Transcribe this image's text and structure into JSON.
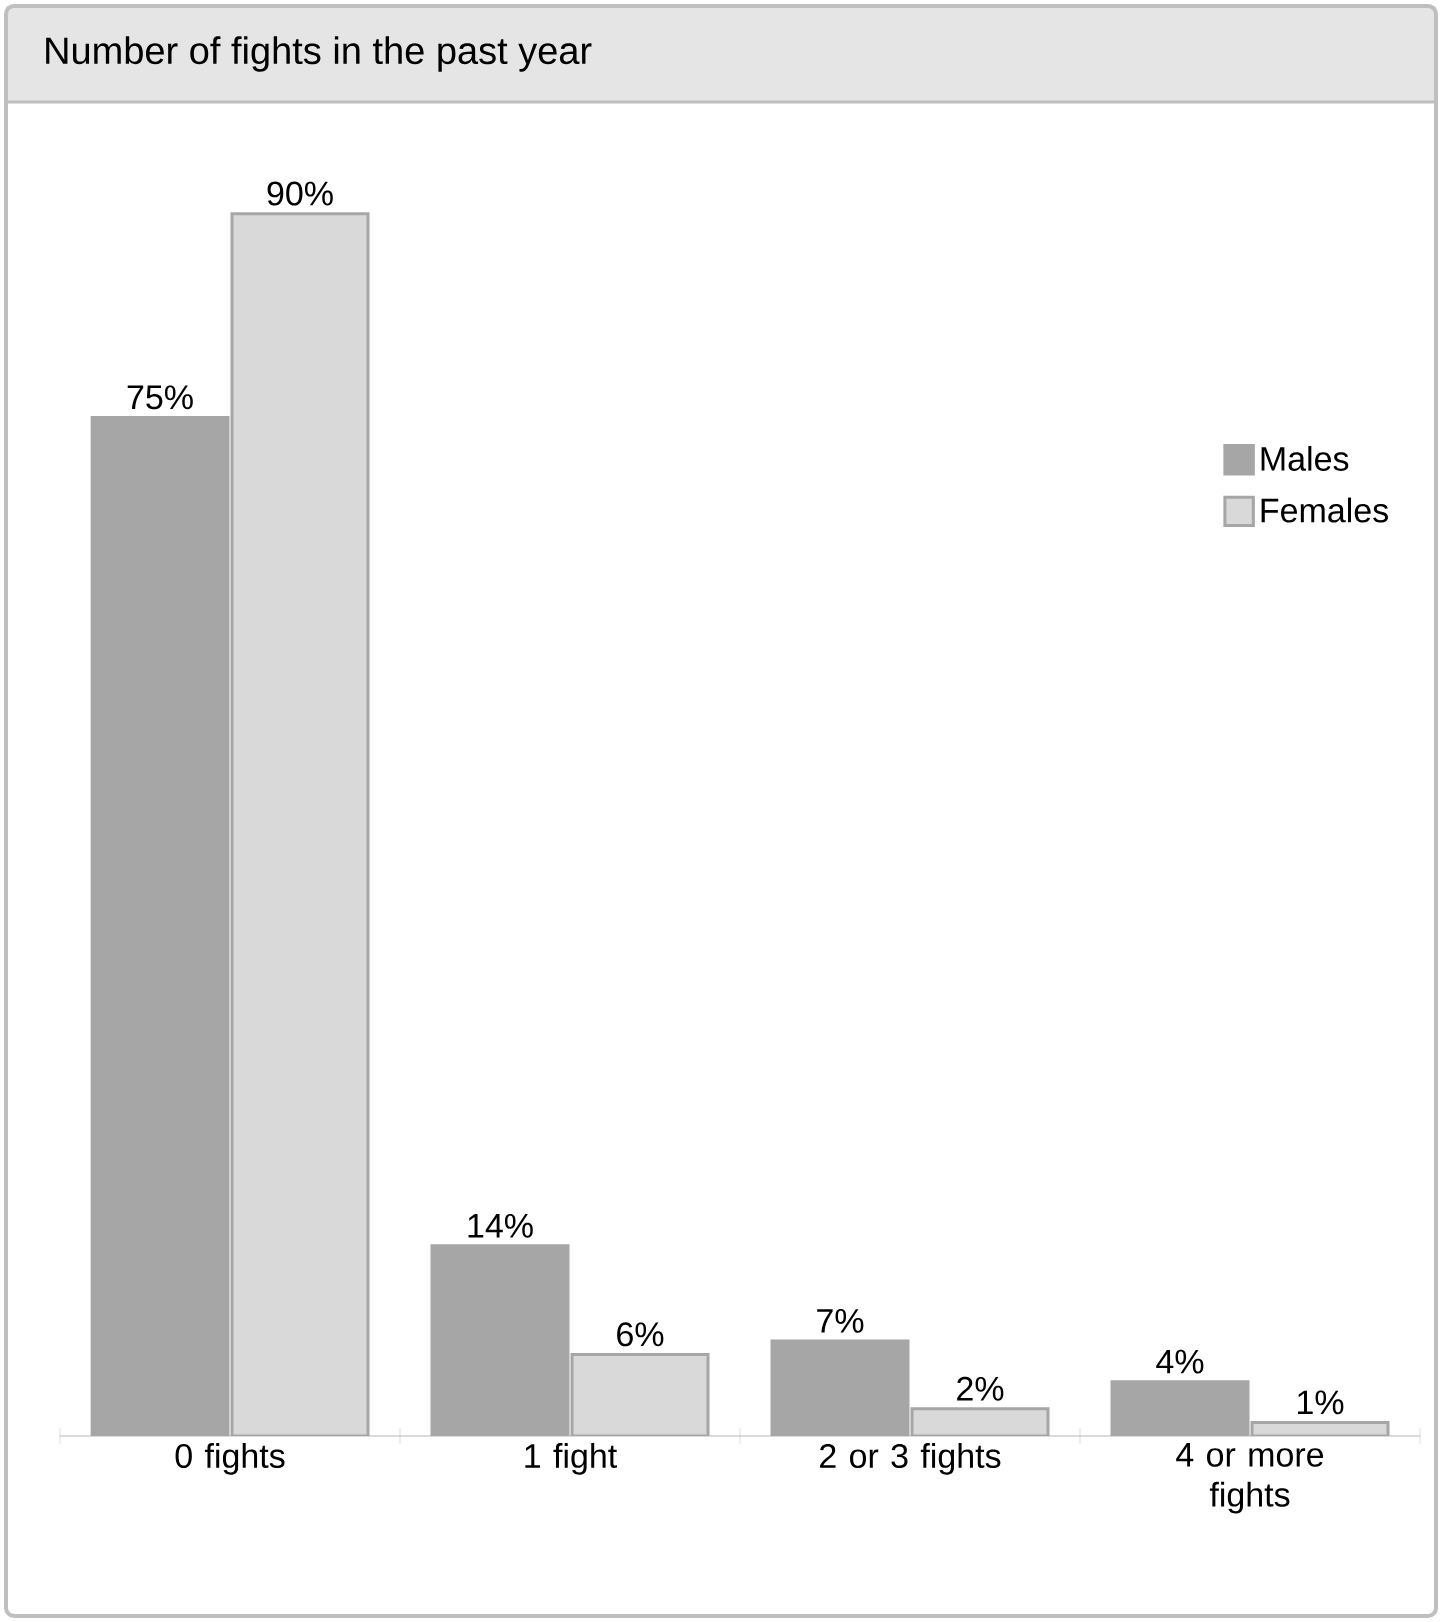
{
  "chart_data": {
    "type": "bar",
    "title": "Number of fights in the past year",
    "categories": [
      "0 fights",
      "1 fight",
      "2 or 3 fights",
      "4 or more fights"
    ],
    "series": [
      {
        "name": "Males",
        "color": "#a6a6a6",
        "values": [
          75,
          14,
          7,
          4
        ],
        "value_labels": [
          "75%",
          "14%",
          "7%",
          "4%"
        ]
      },
      {
        "name": "Females",
        "color": "#d9d9d9",
        "values": [
          90,
          6,
          2,
          1
        ],
        "value_labels": [
          "90%",
          "6%",
          "2%",
          "1%"
        ]
      }
    ],
    "legend": "top right"
  }
}
